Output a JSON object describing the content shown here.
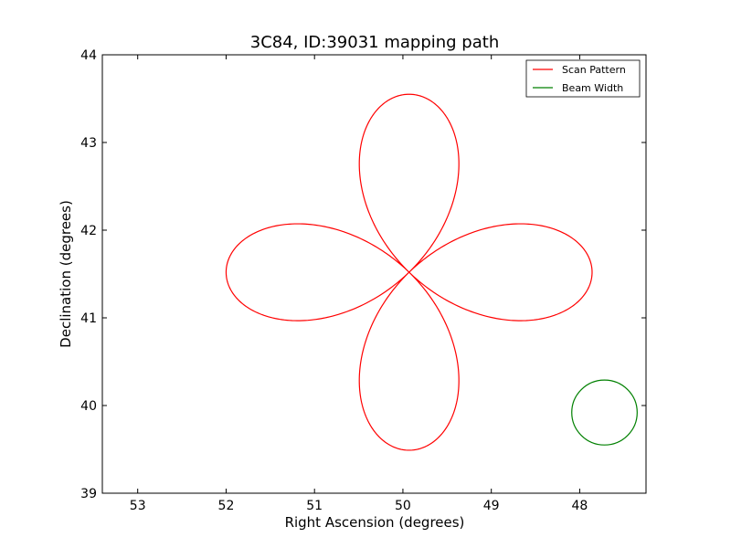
{
  "chart_data": {
    "type": "line",
    "title": "3C84, ID:39031 mapping path",
    "xlabel": "Right Ascension (degrees)",
    "ylabel": "Declination (degrees)",
    "xlim": [
      53.4,
      47.25
    ],
    "ylim": [
      39,
      44
    ],
    "x_inverted": true,
    "xticks": [
      53,
      52,
      51,
      50,
      49,
      48
    ],
    "yticks": [
      39,
      40,
      41,
      42,
      43,
      44
    ],
    "grid": false,
    "legend_position": "top-right",
    "series": [
      {
        "name": "Scan Pattern",
        "color": "#ff0000",
        "shape": "four-petal rose",
        "center": [
          49.93,
          41.52
        ],
        "horizontal_extent_deg": 2.07,
        "vertical_extent_deg": 2.03
      },
      {
        "name": "Beam Width",
        "color": "#008000",
        "shape": "circle",
        "center": [
          47.72,
          39.92
        ],
        "radius_deg": 0.37
      }
    ]
  }
}
